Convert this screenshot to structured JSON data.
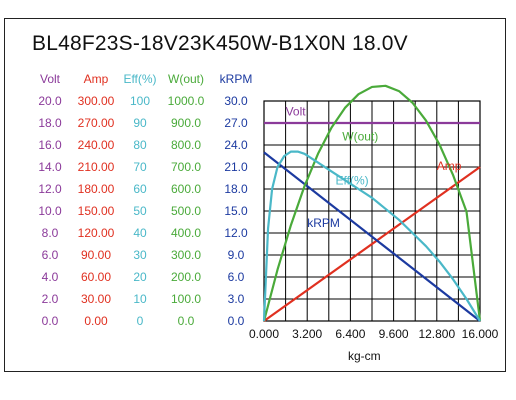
{
  "chart_data": {
    "type": "line",
    "title": "BL48F23S-18V23K450W-B1X0N   18.0V",
    "xlabel": "kg-cm",
    "xlim": [
      0,
      16
    ],
    "x_ticks": [
      "0.000",
      "3.200",
      "6.400",
      "9.600",
      "12.800",
      "16.000"
    ],
    "columns": [
      {
        "name": "Volt",
        "color": "#8b3a9a",
        "ticks": [
          "20.0",
          "18.0",
          "16.0",
          "14.0",
          "12.0",
          "10.0",
          "8.0",
          "6.0",
          "4.0",
          "2.0",
          "0.0"
        ]
      },
      {
        "name": "Amp",
        "color": "#e03020",
        "ticks": [
          "300.00",
          "270.00",
          "240.00",
          "210.00",
          "180.00",
          "150.00",
          "120.00",
          "90.00",
          "60.00",
          "30.00",
          "0.00"
        ]
      },
      {
        "name": "Eff(%)",
        "color": "#4ab8c8",
        "ticks": [
          "100",
          "90",
          "80",
          "70",
          "60",
          "50",
          "40",
          "30",
          "20",
          "10",
          "0"
        ]
      },
      {
        "name": "W(out)",
        "color": "#4aaa3a",
        "ticks": [
          "1000.0",
          "900.0",
          "800.0",
          "700.0",
          "600.0",
          "500.0",
          "400.0",
          "300.0",
          "200.0",
          "100.0",
          "0.0"
        ]
      },
      {
        "name": "kRPM",
        "color": "#1c3aa0",
        "ticks": [
          "30.0",
          "27.0",
          "24.0",
          "21.0",
          "18.0",
          "15.0",
          "12.0",
          "9.0",
          "6.0",
          "3.0",
          "0.0"
        ]
      }
    ],
    "grid": true,
    "series": [
      {
        "name": "Volt",
        "color": "#8b3a9a",
        "scale_max": 20,
        "x": [
          0,
          16
        ],
        "y": [
          18,
          18
        ]
      },
      {
        "name": "Amp",
        "color": "#e03020",
        "scale_max": 300,
        "x": [
          0,
          16
        ],
        "y": [
          0,
          210
        ]
      },
      {
        "name": "kRPM",
        "color": "#1c3aa0",
        "scale_max": 30,
        "x": [
          0,
          16
        ],
        "y": [
          23,
          0
        ]
      },
      {
        "name": "W(out)",
        "color": "#4aaa3a",
        "scale_max": 1000,
        "x": [
          0,
          1,
          2,
          3,
          4,
          5,
          6,
          7,
          8,
          9,
          10,
          11,
          12,
          13,
          14,
          15,
          16
        ],
        "y": [
          0,
          233,
          437,
          613,
          760,
          879,
          969,
          1031,
          1064,
          1069,
          1045,
          992,
          911,
          802,
          664,
          497,
          0
        ]
      },
      {
        "name": "Eff(%)",
        "color": "#4ab8c8",
        "scale_max": 100,
        "x": [
          0,
          0.3,
          0.6,
          1,
          1.5,
          2,
          2.5,
          3,
          4,
          5,
          6,
          7,
          8,
          9,
          10,
          11,
          12,
          13,
          14,
          15,
          16
        ],
        "y": [
          0,
          42,
          60,
          70,
          75,
          77,
          77,
          76,
          72,
          68,
          64,
          60,
          56,
          51,
          46,
          40,
          34,
          27,
          19,
          10,
          0
        ]
      }
    ],
    "series_labels": [
      {
        "series": "Volt",
        "text": "Volt",
        "x": 1.6,
        "y": 28.0
      },
      {
        "series": "W(out)",
        "text": "W(out)",
        "x": 5.8,
        "y": 24.6
      },
      {
        "series": "Amp",
        "text": "Amp",
        "x": 12.8,
        "y": 20.6
      },
      {
        "series": "Eff(%)",
        "text": "Eff(%)",
        "x": 5.3,
        "y": 18.6
      },
      {
        "series": "kRPM",
        "text": "kRPM",
        "x": 3.2,
        "y": 12.8
      }
    ]
  }
}
